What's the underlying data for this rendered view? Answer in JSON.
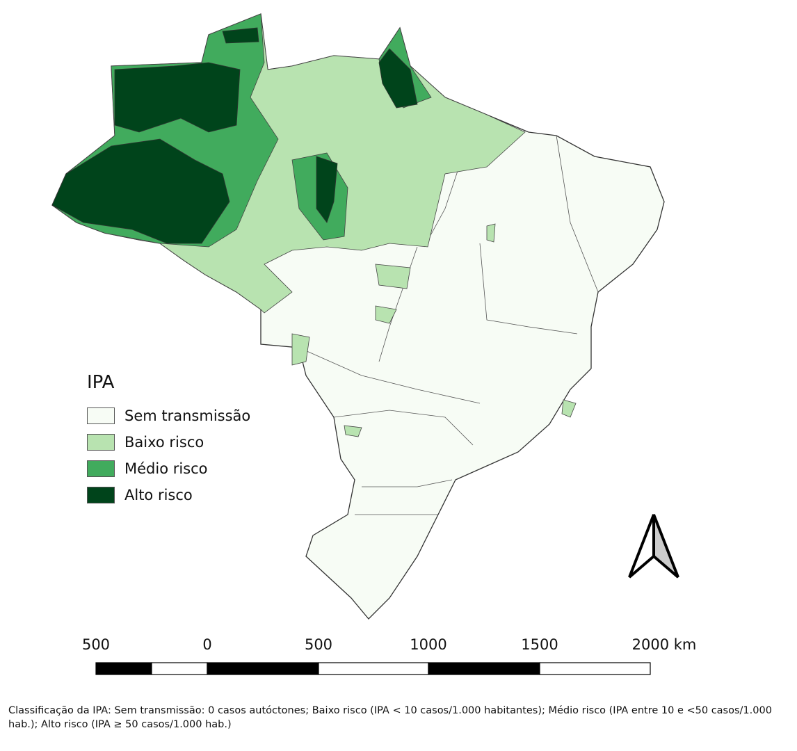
{
  "legend": {
    "title": "IPA",
    "items": [
      {
        "label": "Sem transmissão",
        "color": "#f7fcf5"
      },
      {
        "label": "Baixo risco",
        "color": "#b8e3b0"
      },
      {
        "label": "Médio risco",
        "color": "#41ab5d"
      },
      {
        "label": "Alto risco",
        "color": "#00441b"
      }
    ]
  },
  "scale_bar": {
    "labels": [
      "500",
      "0",
      "500",
      "1000",
      "1500",
      "2000 km"
    ]
  },
  "north_arrow": {
    "icon": "north-arrow-icon"
  },
  "caption": "Classificação da IPA: Sem transmissão: 0 casos autóctones; Baixo risco (IPA < 10 casos/1.000 habitantes); Médio risco (IPA entre 10 e <50 casos/1.000 hab.); Alto risco (IPA ≥ 50 casos/1.000 hab.)"
}
